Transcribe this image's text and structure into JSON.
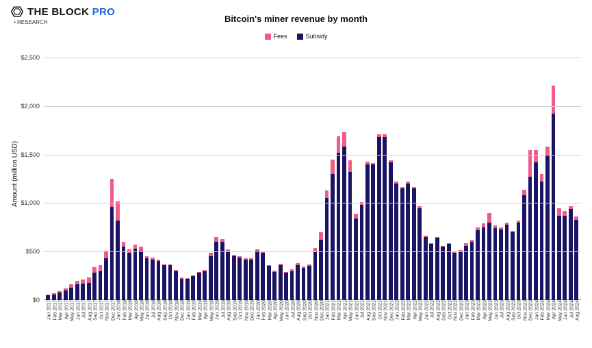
{
  "brand": {
    "name_a": "THE BLOCK",
    "name_b": "PRO",
    "sub": "RESEARCH"
  },
  "chart": {
    "type": "bar-stacked",
    "title": "Bitcoin's miner revenue by month",
    "ylabel": "Amount (million USD)",
    "ylim": [
      0,
      2600
    ],
    "yticks": [
      0,
      500,
      1000,
      1500,
      2000,
      2500
    ],
    "ytick_labels": [
      "$0",
      "$500",
      "$1,000",
      "$1,500",
      "$2,000",
      "$2,500"
    ],
    "colors": {
      "fees": "#ef5d86",
      "subsidy": "#1b1464",
      "grid": "#cfcfcf",
      "background": "#ffffff"
    },
    "legend": [
      {
        "label": "Fees",
        "color": "#ef5d86"
      },
      {
        "label": "Subsidy",
        "color": "#1b1464"
      }
    ],
    "x_labels": [
      "Jan 2017",
      "Feb 2017",
      "Mar 2017",
      "Apr 2017",
      "May 2017",
      "Jun 2017",
      "Jul 2017",
      "Aug 2017",
      "Sep 2017",
      "Oct 2017",
      "Nov 2017",
      "Dec 2017",
      "Jan 2018",
      "Feb 2018",
      "Mar 2018",
      "Apr 2018",
      "May 2018",
      "Jun 2018",
      "Jul 2018",
      "Aug 2018",
      "Sep 2018",
      "Oct 2018",
      "Nov 2018",
      "Dec 2018",
      "Jan 2019",
      "Feb 2019",
      "Mar 2019",
      "Apr 2019",
      "May 2019",
      "Jun 2019",
      "Jul 2019",
      "Aug 2019",
      "Sep 2019",
      "Oct 2019",
      "Nov 2019",
      "Dec 2019",
      "Jan 2020",
      "Feb 2020",
      "Mar 2020",
      "Apr 2020",
      "May 2020",
      "Jun 2020",
      "Jul 2020",
      "Aug 2020",
      "Sep 2020",
      "Oct 2020",
      "Nov 2020",
      "Dec 2020",
      "Jan 2021",
      "Feb 2021",
      "Mar 2021",
      "Apr 2021",
      "May 2021",
      "Jun 2021",
      "Jul 2021",
      "Aug 2021",
      "Sep 2021",
      "Oct 2021",
      "Nov 2021",
      "Dec 2021",
      "Jan 2022",
      "Feb 2022",
      "Mar 2022",
      "Apr 2022",
      "May 2022",
      "Jun 2022",
      "Jul 2022",
      "Aug 2022",
      "Sep 2022",
      "Oct 2022",
      "Nov 2022",
      "Dec 2022",
      "Jan 2023",
      "Feb 2023",
      "Mar 2023",
      "Apr 2023",
      "May 2023",
      "Jun 2023",
      "Jul 2023",
      "Aug 2023",
      "Sep 2023",
      "Oct 2023",
      "Nov 2023",
      "Dec 2023",
      "Jan 2024",
      "Feb 2024",
      "Mar 2024",
      "Apr 2024",
      "May 2024",
      "Jun 2024",
      "Jul 2024",
      "Aug 2024"
    ],
    "subsidy": [
      50,
      60,
      80,
      100,
      130,
      160,
      170,
      180,
      280,
      300,
      430,
      960,
      820,
      550,
      490,
      530,
      510,
      430,
      420,
      400,
      360,
      360,
      300,
      220,
      220,
      250,
      280,
      300,
      450,
      600,
      600,
      500,
      450,
      440,
      420,
      420,
      510,
      490,
      350,
      290,
      360,
      280,
      300,
      360,
      330,
      350,
      500,
      620,
      1050,
      1300,
      1520,
      1580,
      1320,
      840,
      980,
      1400,
      1400,
      1680,
      1680,
      1420,
      1200,
      1150,
      1200,
      1150,
      950,
      650,
      580,
      640,
      550,
      580,
      490,
      500,
      560,
      600,
      720,
      750,
      800,
      740,
      730,
      780,
      700,
      800,
      1080,
      1270,
      1420,
      1220,
      1500,
      1920,
      870,
      870,
      940,
      830
    ],
    "fees": [
      10,
      10,
      15,
      20,
      30,
      40,
      40,
      50,
      60,
      60,
      80,
      290,
      200,
      50,
      30,
      40,
      40,
      20,
      20,
      15,
      10,
      10,
      10,
      10,
      8,
      8,
      8,
      10,
      40,
      50,
      30,
      20,
      15,
      10,
      10,
      8,
      15,
      10,
      8,
      12,
      15,
      10,
      15,
      20,
      15,
      20,
      40,
      80,
      80,
      150,
      170,
      150,
      120,
      50,
      30,
      30,
      15,
      30,
      30,
      20,
      20,
      15,
      20,
      15,
      20,
      15,
      10,
      10,
      10,
      10,
      10,
      15,
      25,
      25,
      30,
      40,
      100,
      30,
      20,
      20,
      15,
      20,
      60,
      280,
      130,
      80,
      80,
      290,
      80,
      50,
      30,
      30
    ]
  }
}
